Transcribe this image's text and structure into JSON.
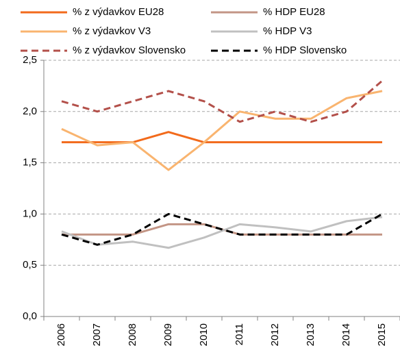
{
  "chart_data": {
    "type": "line",
    "categories": [
      "2006",
      "2007",
      "2008",
      "2009",
      "2010",
      "2011",
      "2012",
      "2013",
      "2014",
      "2015"
    ],
    "series": [
      {
        "name": "% z výdavkov EU28",
        "color": "#f26a1b",
        "dash": false,
        "values": [
          1.7,
          1.7,
          1.7,
          1.8,
          1.7,
          1.7,
          1.7,
          1.7,
          1.7,
          1.7
        ]
      },
      {
        "name": "% HDP EU28",
        "color": "#c39585",
        "dash": false,
        "values": [
          0.8,
          0.8,
          0.8,
          0.9,
          0.9,
          0.8,
          0.8,
          0.8,
          0.8,
          0.8
        ]
      },
      {
        "name": "% z výdavkov V3",
        "color": "#f9b46f",
        "dash": false,
        "values": [
          1.83,
          1.67,
          1.7,
          1.43,
          1.7,
          2.0,
          1.93,
          1.93,
          2.13,
          2.2
        ]
      },
      {
        "name": "% HDP V3",
        "color": "#c0c0c0",
        "dash": false,
        "values": [
          0.83,
          0.7,
          0.73,
          0.67,
          0.77,
          0.9,
          0.87,
          0.83,
          0.93,
          0.97
        ]
      },
      {
        "name": "% z výdavkov Slovensko",
        "color": "#b3504a",
        "dash": true,
        "values": [
          2.1,
          2.0,
          2.1,
          2.2,
          2.1,
          1.9,
          2.0,
          1.9,
          2.0,
          2.3
        ]
      },
      {
        "name": "% HDP Slovensko",
        "color": "#000000",
        "dash": true,
        "values": [
          0.8,
          0.7,
          0.8,
          1.0,
          0.9,
          0.8,
          0.8,
          0.8,
          0.8,
          1.0
        ]
      }
    ],
    "ylim": [
      0,
      2.5
    ],
    "yticks": [
      {
        "value": 0,
        "label": "0,0"
      },
      {
        "value": 0.5,
        "label": "0,5"
      },
      {
        "value": 1,
        "label": "1,0"
      },
      {
        "value": 1.5,
        "label": "1,5"
      },
      {
        "value": 2,
        "label": "2,0"
      },
      {
        "value": 2.5,
        "label": "2,5"
      }
    ],
    "grid": true
  }
}
